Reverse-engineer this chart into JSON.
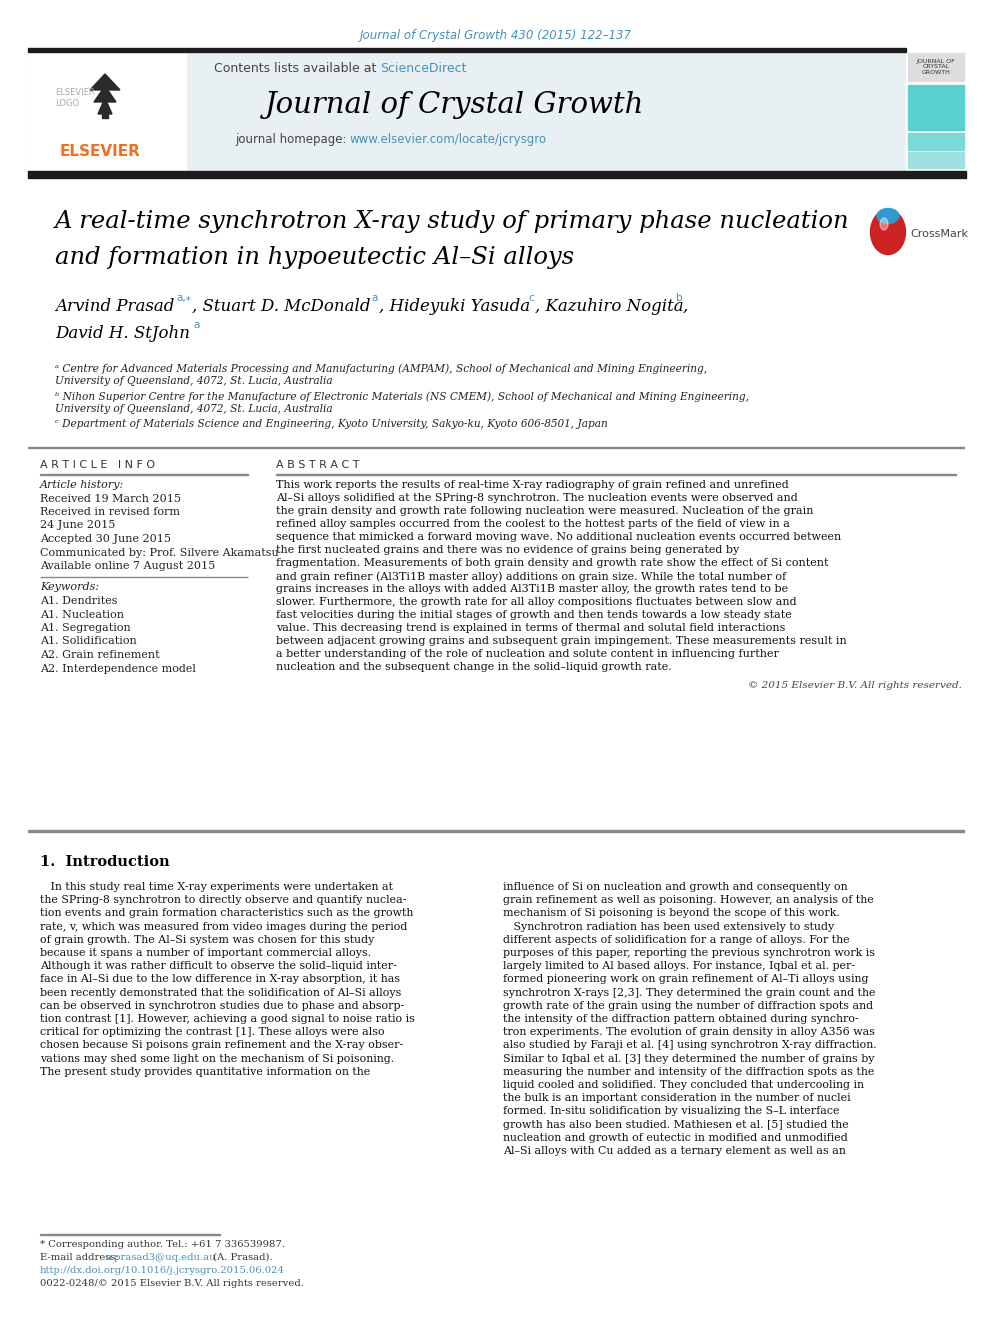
{
  "journal_ref": "Journal of Crystal Growth 430 (2015) 122–137",
  "journal_name": "Journal of Crystal Growth",
  "contents_text": "Contents lists available at ",
  "sciencedirect": "ScienceDirect",
  "homepage_text": "journal homepage: ",
  "homepage_url": "www.elsevier.com/locate/jcrysgro",
  "title_line1": "A real-time synchrotron X-ray study of primary phase nucleation",
  "title_line2": "and formation in hypoeutectic Al–Si alloys",
  "affil_a": "ᵃ Centre for Advanced Materials Processing and Manufacturing (AMPAM), School of Mechanical and Mining Engineering,",
  "affil_a2": "University of Queensland, 4072, St. Lucia, Australia",
  "affil_b": "ᵇ Nihon Superior Centre for the Manufacture of Electronic Materials (NS CMEM), School of Mechanical and Mining Engineering,",
  "affil_b2": "University of Queensland, 4072, St. Lucia, Australia",
  "affil_c": "ᶜ Department of Materials Science and Engineering, Kyoto University, Sakyo-ku, Kyoto 606-8501, Japan",
  "article_info_title": "A R T I C L E   I N F O",
  "abstract_title": "A B S T R A C T",
  "article_history_label": "Article history:",
  "received": "Received 19 March 2015",
  "revised1": "Received in revised form",
  "revised2": "24 June 2015",
  "accepted": "Accepted 30 June 2015",
  "communicated": "Communicated by: Prof. Silvere Akamatsu",
  "available": "Available online 7 August 2015",
  "keywords_label": "Keywords:",
  "keywords": [
    "A1. Dendrites",
    "A1. Nucleation",
    "A1. Segregation",
    "A1. Solidification",
    "A2. Grain refinement",
    "A2. Interdependence model"
  ],
  "abstract_text": "This work reports the results of real-time X-ray radiography of grain refined and unrefined Al–Si alloys solidified at the SPring-8 synchrotron. The nucleation events were observed and the grain density and growth rate following nucleation were measured. Nucleation of the grain refined alloy samples occurred from the coolest to the hottest parts of the field of view in a sequence that mimicked a forward moving wave. No additional nucleation events occurred between the first nucleated grains and there was no evidence of grains being generated by fragmentation. Measurements of both grain density and growth rate show the effect of Si content and grain refiner (Al3Ti1B master alloy) additions on grain size. While the total number of grains increases in the alloys with added Al3Ti1B master alloy, the growth rates tend to be slower. Furthermore, the growth rate for all alloy compositions fluctuates between slow and fast velocities during the initial stages of growth and then tends towards a low steady state value. This decreasing trend is explained in terms of thermal and solutal field interactions between adjacent growing grains and subsequent grain impingement. These measurements result in a better understanding of the role of nucleation and solute content in influencing further nucleation and the subsequent change in the solid–liquid growth rate.",
  "copyright": "© 2015 Elsevier B.V. All rights reserved.",
  "section1_title": "1.  Introduction",
  "intro_col1_lines": [
    "   In this study real time X-ray experiments were undertaken at",
    "the SPring-8 synchrotron to directly observe and quantify nuclea-",
    "tion events and grain formation characteristics such as the growth",
    "rate, v, which was measured from video images during the period",
    "of grain growth. The Al–Si system was chosen for this study",
    "because it spans a number of important commercial alloys.",
    "Although it was rather difficult to observe the solid–liquid inter-",
    "face in Al–Si due to the low difference in X-ray absorption, it has",
    "been recently demonstrated that the solidification of Al–Si alloys",
    "can be observed in synchrotron studies due to phase and absorp-",
    "tion contrast [1]. However, achieving a good signal to noise ratio is",
    "critical for optimizing the contrast [1]. These alloys were also",
    "chosen because Si poisons grain refinement and the X-ray obser-",
    "vations may shed some light on the mechanism of Si poisoning.",
    "The present study provides quantitative information on the"
  ],
  "intro_col2_lines": [
    "influence of Si on nucleation and growth and consequently on",
    "grain refinement as well as poisoning. However, an analysis of the",
    "mechanism of Si poisoning is beyond the scope of this work.",
    "   Synchrotron radiation has been used extensively to study",
    "different aspects of solidification for a range of alloys. For the",
    "purposes of this paper, reporting the previous synchrotron work is",
    "largely limited to Al based alloys. For instance, Iqbal et al. per-",
    "formed pioneering work on grain refinement of Al–Ti alloys using",
    "synchrotron X-rays [2,3]. They determined the grain count and the",
    "growth rate of the grain using the number of diffraction spots and",
    "the intensity of the diffraction pattern obtained during synchro-",
    "tron experiments. The evolution of grain density in alloy A356 was",
    "also studied by Faraji et al. [4] using synchrotron X-ray diffraction.",
    "Similar to Iqbal et al. [3] they determined the number of grains by",
    "measuring the number and intensity of the diffraction spots as the",
    "liquid cooled and solidified. They concluded that undercooling in",
    "the bulk is an important consideration in the number of nuclei",
    "formed. In-situ solidification by visualizing the S–L interface",
    "growth has also been studied. Mathiesen et al. [5] studied the",
    "nucleation and growth of eutectic in modified and unmodified",
    "Al–Si alloys with Cu added as a ternary element as well as an"
  ],
  "footnote_star": "* Corresponding author. Tel.: +61 7 336539987.",
  "footnote_email_label": "E-mail address: ",
  "footnote_email": "a.prasad3@uq.edu.au",
  "footnote_email_end": " (A. Prasad).",
  "footnote_doi": "http://dx.doi.org/10.1016/j.jcrysgro.2015.06.024",
  "footnote_issn": "0022-0248/© 2015 Elsevier B.V. All rights reserved.",
  "header_bg_color": "#e8f0f4",
  "teal_bright": "#5acfcf",
  "teal_mid": "#7dd8d8",
  "teal_light": "#a0e0e0",
  "link_color": "#4a90b8",
  "orange_elsevier": "#f07020",
  "dark_bar": "#1c1c1c"
}
